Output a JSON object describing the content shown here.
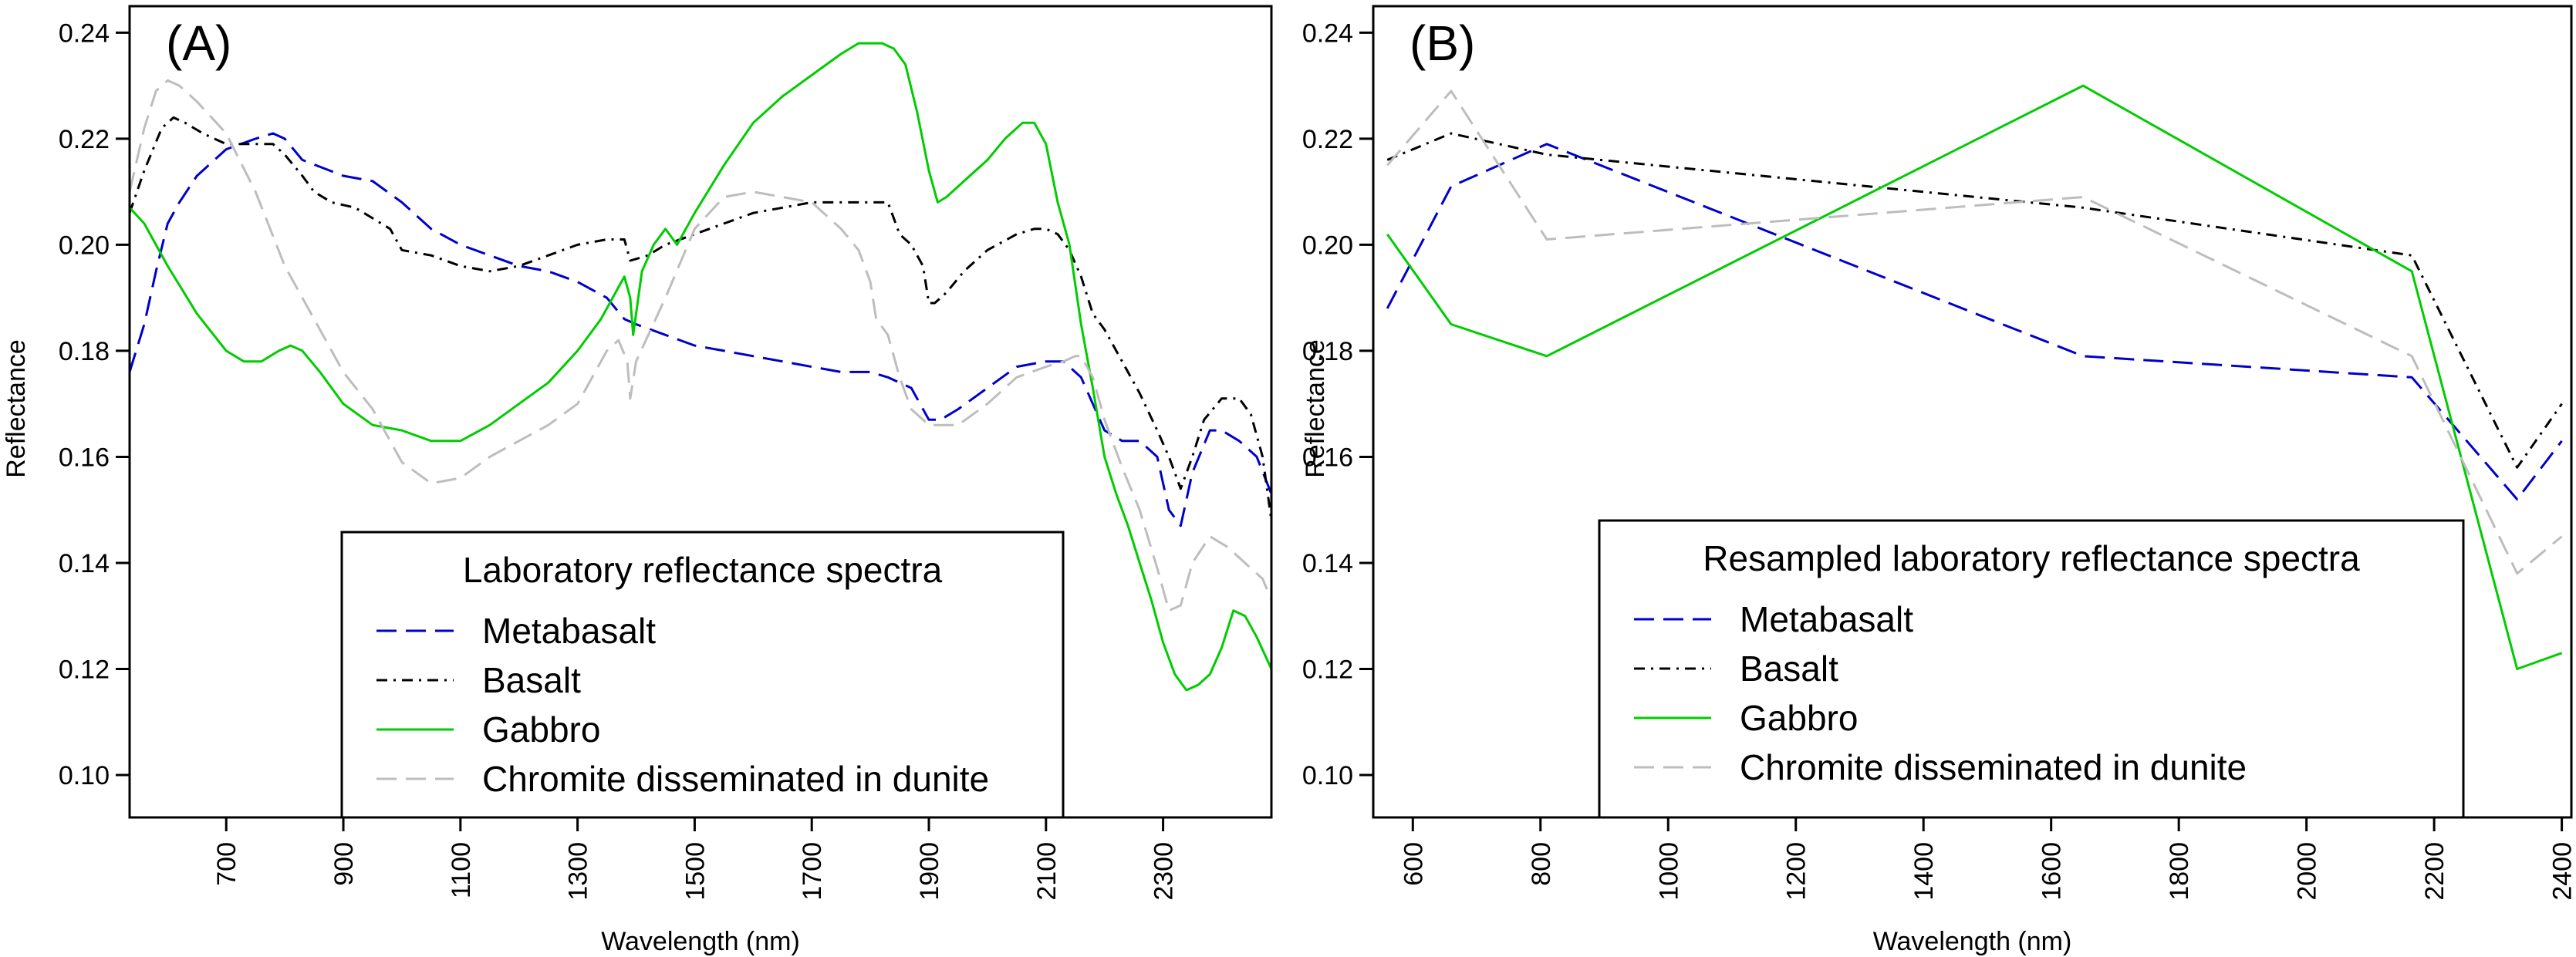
{
  "chart_data": [
    {
      "type": "line",
      "panel_label": "(A)",
      "xlabel": "Wavelength (nm)",
      "ylabel": "Reflectance",
      "xlim": [
        535,
        2485
      ],
      "ylim": [
        0.092,
        0.245
      ],
      "xticks": [
        700,
        900,
        1100,
        1300,
        1500,
        1700,
        1900,
        2100,
        2300
      ],
      "xtick_labels": [
        "700",
        "900",
        "1100",
        "1300",
        "1500",
        "1700",
        "1900",
        "2100",
        "2300"
      ],
      "yticks": [
        0.1,
        0.12,
        0.14,
        0.16,
        0.18,
        0.2,
        0.22,
        0.24
      ],
      "ytick_labels": [
        "0.10",
        "0.12",
        "0.14",
        "0.16",
        "0.18",
        "0.20",
        "0.22",
        "0.24"
      ],
      "grid": false,
      "legend": {
        "title": "Laboratory reflectance spectra",
        "placement": "bottom-center",
        "entries": [
          "Metabasalt",
          "Basalt",
          "Gabbro",
          "Chromite disseminated in dunite"
        ]
      },
      "series": [
        {
          "name": "Metabasalt",
          "color": "#0000cc",
          "dash": "long-dash",
          "x": [
            535,
            560,
            580,
            600,
            620,
            650,
            700,
            750,
            780,
            800,
            830,
            900,
            950,
            1000,
            1050,
            1100,
            1150,
            1200,
            1250,
            1300,
            1350,
            1380,
            1400,
            1450,
            1500,
            1550,
            1600,
            1650,
            1700,
            1750,
            1800,
            1830,
            1870,
            1900,
            1920,
            1950,
            2000,
            2050,
            2100,
            2130,
            2160,
            2180,
            2200,
            2230,
            2260,
            2290,
            2310,
            2330,
            2350,
            2380,
            2400,
            2430,
            2460,
            2485
          ],
          "y": [
            0.176,
            0.185,
            0.195,
            0.204,
            0.208,
            0.213,
            0.218,
            0.22,
            0.221,
            0.22,
            0.216,
            0.213,
            0.212,
            0.208,
            0.203,
            0.2,
            0.198,
            0.196,
            0.195,
            0.193,
            0.19,
            0.186,
            0.185,
            0.183,
            0.181,
            0.18,
            0.179,
            0.178,
            0.177,
            0.176,
            0.176,
            0.175,
            0.173,
            0.167,
            0.167,
            0.169,
            0.173,
            0.177,
            0.178,
            0.178,
            0.175,
            0.17,
            0.165,
            0.163,
            0.163,
            0.16,
            0.15,
            0.147,
            0.157,
            0.165,
            0.165,
            0.163,
            0.16,
            0.153
          ]
        },
        {
          "name": "Basalt",
          "color": "#000000",
          "dash": "dash-dot",
          "x": [
            535,
            560,
            590,
            610,
            630,
            660,
            700,
            750,
            780,
            800,
            830,
            850,
            880,
            920,
            950,
            980,
            1000,
            1050,
            1100,
            1150,
            1200,
            1250,
            1300,
            1350,
            1380,
            1390,
            1420,
            1450,
            1500,
            1550,
            1600,
            1650,
            1700,
            1750,
            1800,
            1830,
            1850,
            1870,
            1890,
            1900,
            1910,
            1930,
            1960,
            2000,
            2050,
            2080,
            2100,
            2120,
            2140,
            2160,
            2180,
            2200,
            2230,
            2260,
            2290,
            2310,
            2330,
            2350,
            2370,
            2400,
            2430,
            2450,
            2470,
            2485
          ],
          "y": [
            0.206,
            0.214,
            0.222,
            0.224,
            0.223,
            0.221,
            0.219,
            0.219,
            0.219,
            0.217,
            0.213,
            0.21,
            0.208,
            0.207,
            0.205,
            0.203,
            0.199,
            0.198,
            0.196,
            0.195,
            0.196,
            0.198,
            0.2,
            0.201,
            0.201,
            0.197,
            0.198,
            0.2,
            0.202,
            0.204,
            0.206,
            0.207,
            0.208,
            0.208,
            0.208,
            0.208,
            0.202,
            0.2,
            0.196,
            0.189,
            0.189,
            0.191,
            0.195,
            0.199,
            0.202,
            0.203,
            0.203,
            0.202,
            0.199,
            0.194,
            0.187,
            0.184,
            0.178,
            0.172,
            0.165,
            0.16,
            0.154,
            0.16,
            0.167,
            0.171,
            0.171,
            0.168,
            0.16,
            0.148
          ]
        },
        {
          "name": "Gabbro",
          "color": "#00cc00",
          "dash": "solid",
          "x": [
            535,
            560,
            600,
            650,
            700,
            730,
            760,
            790,
            810,
            830,
            860,
            900,
            950,
            1000,
            1050,
            1100,
            1150,
            1200,
            1250,
            1300,
            1340,
            1370,
            1380,
            1390,
            1395,
            1410,
            1430,
            1450,
            1470,
            1500,
            1550,
            1600,
            1650,
            1700,
            1750,
            1780,
            1800,
            1820,
            1840,
            1860,
            1880,
            1900,
            1915,
            1930,
            1960,
            2000,
            2030,
            2060,
            2080,
            2100,
            2120,
            2140,
            2160,
            2180,
            2200,
            2220,
            2240,
            2260,
            2280,
            2300,
            2320,
            2340,
            2360,
            2380,
            2400,
            2420,
            2440,
            2460,
            2485
          ],
          "y": [
            0.207,
            0.204,
            0.196,
            0.187,
            0.18,
            0.178,
            0.178,
            0.18,
            0.181,
            0.18,
            0.176,
            0.17,
            0.166,
            0.165,
            0.163,
            0.163,
            0.166,
            0.17,
            0.174,
            0.18,
            0.186,
            0.192,
            0.194,
            0.19,
            0.183,
            0.195,
            0.2,
            0.203,
            0.2,
            0.206,
            0.215,
            0.223,
            0.228,
            0.232,
            0.236,
            0.238,
            0.238,
            0.238,
            0.237,
            0.234,
            0.225,
            0.214,
            0.208,
            0.209,
            0.212,
            0.216,
            0.22,
            0.223,
            0.223,
            0.219,
            0.208,
            0.2,
            0.185,
            0.173,
            0.16,
            0.153,
            0.147,
            0.14,
            0.133,
            0.125,
            0.119,
            0.116,
            0.117,
            0.119,
            0.124,
            0.131,
            0.13,
            0.126,
            0.12
          ]
        },
        {
          "name": "Chromite disseminated in dunite",
          "color": "#bdbdbd",
          "dash": "long-dash",
          "x": [
            535,
            560,
            580,
            600,
            620,
            650,
            700,
            750,
            800,
            850,
            900,
            950,
            1000,
            1050,
            1100,
            1150,
            1200,
            1250,
            1300,
            1350,
            1370,
            1385,
            1390,
            1400,
            1450,
            1500,
            1550,
            1600,
            1650,
            1700,
            1750,
            1780,
            1800,
            1810,
            1830,
            1850,
            1870,
            1900,
            1950,
            2000,
            2050,
            2100,
            2130,
            2150,
            2160,
            2180,
            2200,
            2230,
            2260,
            2290,
            2310,
            2330,
            2350,
            2380,
            2410,
            2440,
            2470,
            2485
          ],
          "y": [
            0.21,
            0.222,
            0.229,
            0.231,
            0.23,
            0.227,
            0.221,
            0.21,
            0.196,
            0.186,
            0.176,
            0.169,
            0.159,
            0.155,
            0.156,
            0.16,
            0.163,
            0.166,
            0.17,
            0.18,
            0.182,
            0.178,
            0.171,
            0.178,
            0.19,
            0.203,
            0.209,
            0.21,
            0.209,
            0.208,
            0.203,
            0.199,
            0.193,
            0.186,
            0.183,
            0.175,
            0.169,
            0.166,
            0.166,
            0.17,
            0.175,
            0.177,
            0.178,
            0.179,
            0.179,
            0.175,
            0.167,
            0.158,
            0.15,
            0.139,
            0.131,
            0.132,
            0.14,
            0.145,
            0.143,
            0.14,
            0.137,
            0.133
          ]
        }
      ]
    },
    {
      "type": "line",
      "panel_label": "(B)",
      "xlabel": "Wavelength (nm)",
      "ylabel": "Reflectance",
      "xlim": [
        538,
        2415
      ],
      "ylim": [
        0.092,
        0.245
      ],
      "xticks": [
        600,
        800,
        1000,
        1200,
        1400,
        1600,
        1800,
        2000,
        2200,
        2400
      ],
      "xtick_labels": [
        "600",
        "800",
        "1000",
        "1200",
        "1400",
        "1600",
        "1800",
        "2000",
        "2200",
        "2400"
      ],
      "yticks": [
        0.1,
        0.12,
        0.14,
        0.16,
        0.18,
        0.2,
        0.22,
        0.24
      ],
      "ytick_labels": [
        "0.10",
        "0.12",
        "0.14",
        "0.16",
        "0.18",
        "0.20",
        "0.22",
        "0.24"
      ],
      "grid": false,
      "legend": {
        "title": "Resampled laboratory reflectance spectra",
        "placement": "bottom-center",
        "entries": [
          "Metabasalt",
          "Basalt",
          "Gabbro",
          "Chromite disseminated in dunite"
        ]
      },
      "series": [
        {
          "name": "Metabasalt",
          "color": "#0000cc",
          "dash": "long-dash",
          "x": [
            560,
            660,
            810,
            1650,
            2165,
            2330,
            2400
          ],
          "y": [
            0.188,
            0.211,
            0.219,
            0.179,
            0.175,
            0.152,
            0.163
          ]
        },
        {
          "name": "Basalt",
          "color": "#000000",
          "dash": "dash-dot",
          "x": [
            560,
            660,
            810,
            1650,
            2165,
            2330,
            2400
          ],
          "y": [
            0.216,
            0.221,
            0.217,
            0.207,
            0.198,
            0.158,
            0.17
          ]
        },
        {
          "name": "Gabbro",
          "color": "#00cc00",
          "dash": "solid",
          "x": [
            560,
            660,
            810,
            1650,
            2165,
            2330,
            2400
          ],
          "y": [
            0.202,
            0.185,
            0.179,
            0.23,
            0.195,
            0.12,
            0.123
          ]
        },
        {
          "name": "Chromite disseminated in dunite",
          "color": "#bdbdbd",
          "dash": "long-dash",
          "x": [
            560,
            660,
            810,
            1650,
            2165,
            2330,
            2400
          ],
          "y": [
            0.215,
            0.229,
            0.201,
            0.209,
            0.179,
            0.138,
            0.145
          ]
        }
      ]
    }
  ]
}
